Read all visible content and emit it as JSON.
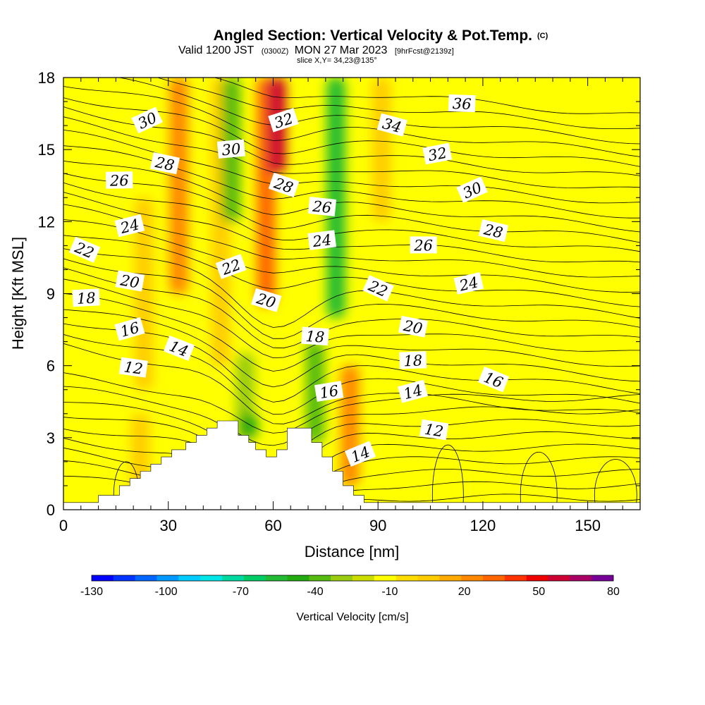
{
  "header": {
    "title": "Angled Section: Vertical Velocity & Pot.Temp.",
    "title_units": "(C)",
    "valid_prefix": "Valid 1200 JST",
    "valid_zulu": "(0300Z)",
    "valid_date": "MON 27 Mar 2023",
    "forecast": "[9hrFcst@2139z]",
    "slice": "slice X,Y= 34,23@135°"
  },
  "chart_data": {
    "type": "heatmap",
    "xlabel": "Distance [nm]",
    "ylabel": "Height [Kft MSL]",
    "xlim": [
      0,
      165
    ],
    "ylim": [
      0,
      18
    ],
    "xticks": [
      0,
      30,
      60,
      90,
      120,
      150
    ],
    "yticks": [
      0,
      3,
      6,
      9,
      12,
      15,
      18
    ],
    "terrain": {
      "x": [
        0,
        10,
        10,
        16,
        16,
        19,
        19,
        22,
        22,
        25,
        25,
        28,
        28,
        31,
        31,
        35,
        35,
        38,
        38,
        41,
        41,
        44,
        44,
        47,
        47,
        50,
        50,
        53,
        53,
        55,
        55,
        58,
        58,
        61,
        61,
        64,
        64,
        71,
        71,
        74,
        74,
        77,
        77,
        80,
        80,
        83,
        83,
        86,
        86,
        165
      ],
      "height_kft": [
        0.3,
        0.3,
        0.6,
        0.6,
        1.0,
        1.0,
        1.3,
        1.3,
        1.6,
        1.6,
        1.9,
        1.9,
        2.2,
        2.2,
        2.5,
        2.5,
        2.8,
        2.8,
        3.1,
        3.1,
        3.4,
        3.4,
        3.7,
        3.7,
        3.7,
        3.7,
        3.1,
        3.1,
        2.8,
        2.8,
        2.5,
        2.5,
        2.2,
        2.2,
        2.5,
        2.5,
        3.4,
        3.4,
        2.8,
        2.8,
        2.2,
        2.2,
        1.6,
        1.6,
        1.0,
        1.0,
        0.6,
        0.6,
        0.3,
        0.3
      ]
    },
    "vertical_velocity_columns": {
      "units": "cm/s",
      "background_value": 5,
      "features": [
        {
          "x": 33,
          "bottom_kft": 9,
          "top_kft": 18,
          "value": 45
        },
        {
          "x": 23,
          "bottom_kft": 5,
          "top_kft": 13,
          "value": 20
        },
        {
          "x": 45,
          "bottom_kft": 6,
          "top_kft": 18,
          "value": 20
        },
        {
          "x": 48,
          "bottom_kft": 12,
          "top_kft": 18,
          "value": -30
        },
        {
          "x": 58,
          "bottom_kft": 8.5,
          "top_kft": 18,
          "value": 55
        },
        {
          "x": 61,
          "bottom_kft": 14,
          "top_kft": 18,
          "value": 80
        },
        {
          "x": 52,
          "bottom_kft": 2.8,
          "top_kft": 6.5,
          "value": -20
        },
        {
          "x": 53,
          "bottom_kft": 3.0,
          "top_kft": 4.0,
          "value": -40
        },
        {
          "x": 72,
          "bottom_kft": 2.8,
          "top_kft": 7.0,
          "value": -25
        },
        {
          "x": 78,
          "bottom_kft": 8,
          "top_kft": 18,
          "value": -45
        },
        {
          "x": 82,
          "bottom_kft": 1.0,
          "top_kft": 6.0,
          "value": 45
        },
        {
          "x": 91,
          "bottom_kft": 12,
          "top_kft": 18,
          "value": 25
        },
        {
          "x": 22,
          "bottom_kft": 0.5,
          "top_kft": 4.0,
          "value": 20
        }
      ]
    },
    "potential_temperature_contours": {
      "units": "C",
      "labels": [
        {
          "text": "30",
          "x": 24,
          "y": 16.2
        },
        {
          "text": "28",
          "x": 29,
          "y": 14.4
        },
        {
          "text": "26",
          "x": 16,
          "y": 13.7
        },
        {
          "text": "24",
          "x": 19,
          "y": 11.8
        },
        {
          "text": "22",
          "x": 6,
          "y": 10.8
        },
        {
          "text": "20",
          "x": 19,
          "y": 9.5
        },
        {
          "text": "18",
          "x": 6.5,
          "y": 8.8
        },
        {
          "text": "16",
          "x": 19,
          "y": 7.5
        },
        {
          "text": "14",
          "x": 33,
          "y": 6.7
        },
        {
          "text": "12",
          "x": 20,
          "y": 5.9
        },
        {
          "text": "30",
          "x": 48,
          "y": 15.0
        },
        {
          "text": "32",
          "x": 63,
          "y": 16.2
        },
        {
          "text": "28",
          "x": 63,
          "y": 13.5
        },
        {
          "text": "26",
          "x": 74,
          "y": 12.6
        },
        {
          "text": "24",
          "x": 74,
          "y": 11.2
        },
        {
          "text": "22",
          "x": 48,
          "y": 10.1
        },
        {
          "text": "20",
          "x": 58,
          "y": 8.7
        },
        {
          "text": "18",
          "x": 72,
          "y": 7.2
        },
        {
          "text": "16",
          "x": 76,
          "y": 4.9
        },
        {
          "text": "14",
          "x": 85,
          "y": 2.3
        },
        {
          "text": "34",
          "x": 94,
          "y": 16.0
        },
        {
          "text": "36",
          "x": 114,
          "y": 16.9
        },
        {
          "text": "32",
          "x": 107,
          "y": 14.8
        },
        {
          "text": "30",
          "x": 117,
          "y": 13.3
        },
        {
          "text": "28",
          "x": 123,
          "y": 11.6
        },
        {
          "text": "26",
          "x": 103,
          "y": 11.0
        },
        {
          "text": "24",
          "x": 116,
          "y": 9.4
        },
        {
          "text": "22",
          "x": 90,
          "y": 9.2
        },
        {
          "text": "20",
          "x": 100,
          "y": 7.6
        },
        {
          "text": "18",
          "x": 100,
          "y": 6.2
        },
        {
          "text": "14",
          "x": 100,
          "y": 4.9
        },
        {
          "text": "16",
          "x": 123,
          "y": 5.4
        },
        {
          "text": "12",
          "x": 106,
          "y": 3.3
        }
      ]
    },
    "colorbar": {
      "label": "Vertical Velocity [cm/s]",
      "min": -130,
      "max": 80,
      "step": 10,
      "tick_labels": [
        "-130",
        "-100",
        "-70",
        "-40",
        "-10",
        "20",
        "50",
        "80"
      ],
      "colors": [
        "#0000ff",
        "#0033ff",
        "#0066ff",
        "#0099ff",
        "#00ccff",
        "#00e6e6",
        "#00d9a0",
        "#00cc66",
        "#22bb33",
        "#22aa11",
        "#55bb11",
        "#99cc11",
        "#ccdd00",
        "#ffff00",
        "#ffdd00",
        "#ffcc00",
        "#ffaa00",
        "#ff8800",
        "#ff6600",
        "#ff3300",
        "#ee0000",
        "#cc0033",
        "#aa0066",
        "#770099"
      ]
    }
  }
}
